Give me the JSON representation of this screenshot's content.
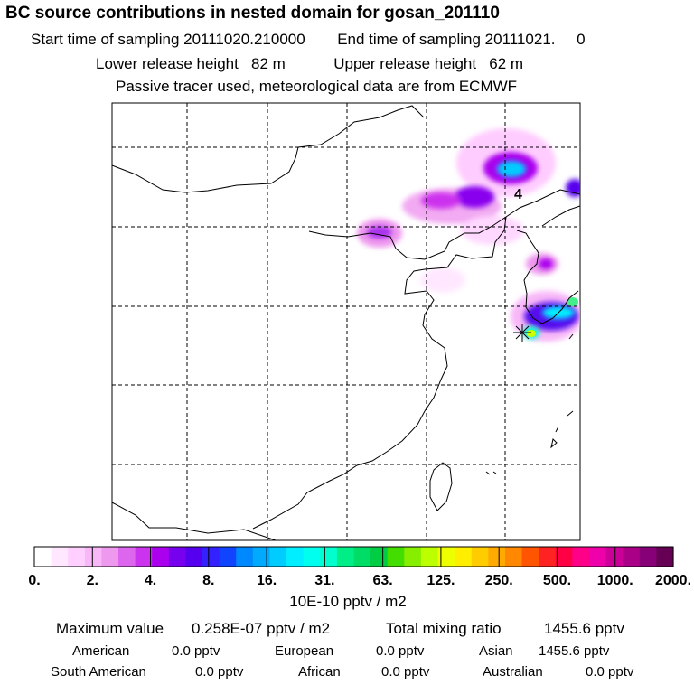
{
  "header": {
    "title": "BC  source contributions in nested domain for gosan_201110",
    "start_label": "Start time of sampling",
    "start_value": "20111020.210000",
    "end_label": "End time of sampling",
    "end_value": "20111021.     0",
    "lower_label": "Lower release height",
    "lower_value": "82 m",
    "upper_label": "Upper release height",
    "upper_value": "62 m",
    "info": "Passive tracer used, meteorological data are from ECMWF"
  },
  "chart_data": {
    "type": "heatmap",
    "map_label": "4",
    "colorbar": {
      "unit": "10E-10 pptv / m2",
      "ticks": [
        "0.",
        "2.",
        "4.",
        "8.",
        "16.",
        "31.",
        "63.",
        "125.",
        "250.",
        "500.",
        "1000.",
        "2000."
      ],
      "colors": [
        "#ffffff",
        "#ffe8ff",
        "#ffd0ff",
        "#f8b8f8",
        "#ee99ee",
        "#dd66ee",
        "#cc33ee",
        "#aa00ee",
        "#7700ee",
        "#5500ee",
        "#3322ff",
        "#1144ff",
        "#0088ff",
        "#00aaff",
        "#00ccff",
        "#00eeff",
        "#00ffee",
        "#00ffcc",
        "#00ee88",
        "#00dd66",
        "#00cc44",
        "#44dd00",
        "#88ee00",
        "#bbff00",
        "#eeff00",
        "#ffee00",
        "#ffcc00",
        "#ffaa00",
        "#ff8800",
        "#ff5500",
        "#ff2222",
        "#ff0044",
        "#ff0088",
        "#ee00aa",
        "#cc0099",
        "#aa0088",
        "#880077",
        "#660055"
      ]
    }
  },
  "stats": {
    "max_label": "Maximum value",
    "max_value": "0.258E-07 pptv / m2",
    "total_label": "Total mixing ratio",
    "total_value": "1455.6 pptv",
    "american_label": "American",
    "american_value": "0.0 pptv",
    "european_label": "European",
    "european_value": "0.0 pptv",
    "asian_label": "Asian",
    "asian_value": "1455.6 pptv",
    "southam_label": "South American",
    "southam_value": "0.0 pptv",
    "african_label": "African",
    "african_value": "0.0 pptv",
    "australian_label": "Australian",
    "australian_value": "0.0 pptv"
  }
}
